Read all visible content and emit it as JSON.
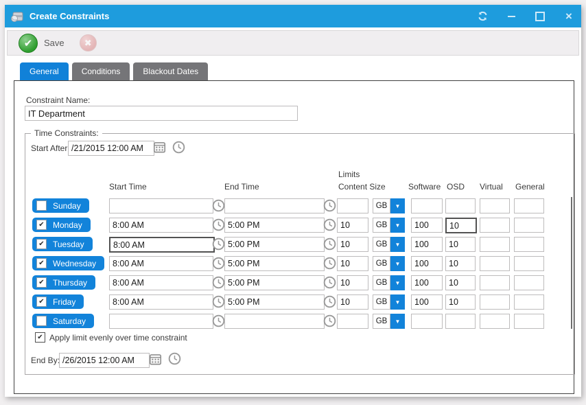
{
  "window": {
    "title": "Create Constraints"
  },
  "titlebar": {
    "icons": [
      "app-icon",
      "refresh-icon",
      "minimize-icon",
      "maximize-icon",
      "close-icon"
    ]
  },
  "toolbar": {
    "save_label": "Save",
    "icons": [
      "save-check-icon",
      "cancel-x-icon"
    ]
  },
  "tabs": [
    {
      "label": "General",
      "active": true
    },
    {
      "label": "Conditions",
      "active": false
    },
    {
      "label": "Blackout Dates",
      "active": false
    }
  ],
  "general_tab": {
    "constraint_name_label": "Constraint Name:",
    "constraint_name_value": "IT Department",
    "time_constraints": {
      "legend": "Time Constraints:",
      "start_after_label": "Start After:",
      "start_after_value": "/21/2015 12:00 AM",
      "columns": {
        "limits": "Limits",
        "start_time": "Start Time",
        "end_time": "End Time",
        "content_size": "Content Size",
        "software": "Software",
        "osd": "OSD",
        "virtual": "Virtual",
        "general": "General"
      },
      "days": [
        {
          "label": "Sunday",
          "checked": false,
          "start": "",
          "end": "",
          "content_size": "",
          "unit": "GB",
          "software": "",
          "osd": "",
          "virtual": "",
          "general": ""
        },
        {
          "label": "Monday",
          "checked": true,
          "start": "8:00 AM",
          "end": "5:00 PM",
          "content_size": "10",
          "unit": "GB",
          "software": "100",
          "osd": "10",
          "virtual": "",
          "general": "",
          "osd_focused": true
        },
        {
          "label": "Tuesday",
          "checked": true,
          "start": "8:00 AM",
          "end": "5:00 PM",
          "content_size": "10",
          "unit": "GB",
          "software": "100",
          "osd": "10",
          "virtual": "",
          "general": "",
          "start_focused": true
        },
        {
          "label": "Wednesday",
          "checked": true,
          "start": "8:00 AM",
          "end": "5:00 PM",
          "content_size": "10",
          "unit": "GB",
          "software": "100",
          "osd": "10",
          "virtual": "",
          "general": ""
        },
        {
          "label": "Thursday",
          "checked": true,
          "start": "8:00 AM",
          "end": "5:00 PM",
          "content_size": "10",
          "unit": "GB",
          "software": "100",
          "osd": "10",
          "virtual": "",
          "general": ""
        },
        {
          "label": "Friday",
          "checked": true,
          "start": "8:00 AM",
          "end": "5:00 PM",
          "content_size": "10",
          "unit": "GB",
          "software": "100",
          "osd": "10",
          "virtual": "",
          "general": ""
        },
        {
          "label": "Saturday",
          "checked": false,
          "start": "",
          "end": "",
          "content_size": "",
          "unit": "GB",
          "software": "",
          "osd": "",
          "virtual": "",
          "general": ""
        }
      ],
      "apply_evenly_label": "Apply limit evenly over time constraint",
      "apply_evenly_checked": true,
      "end_by_label": "End By:",
      "end_by_value": "/26/2015 12:00 AM"
    }
  },
  "colors": {
    "titlebar": "#1E9CDD",
    "accent_blue": "#1283DA",
    "inactive_tab": "#757578",
    "save_green": "#2f9e2f",
    "cancel_red": "#d97e7e"
  }
}
